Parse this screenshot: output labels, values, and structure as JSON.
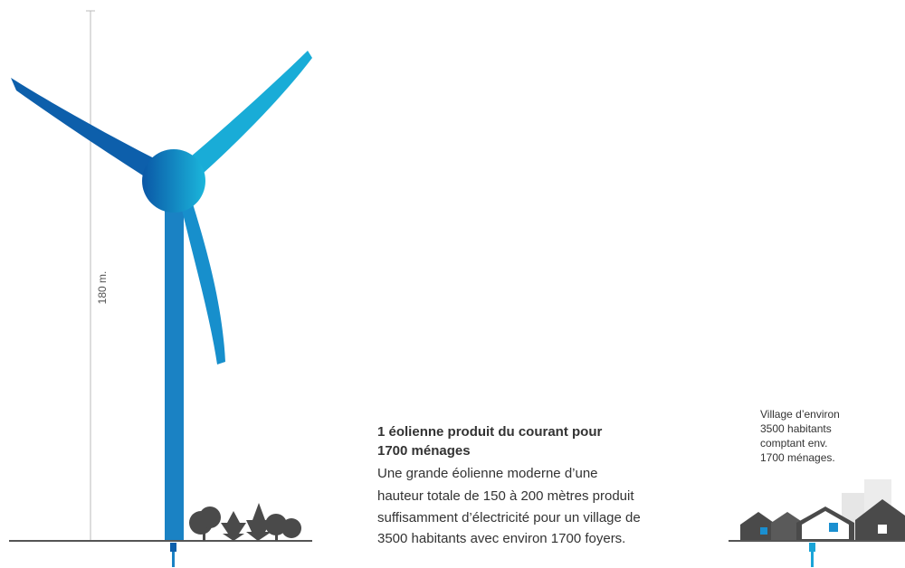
{
  "turbine": {
    "height_label": "180 m."
  },
  "description": {
    "heading_lines": [
      "1 éolienne produit du courant pour",
      "1700 ménages"
    ],
    "body_lines": [
      "Une grande éolienne  moderne d’une",
      "hauteur totale de 150 à 200 mètres produit",
      "suffisamment d’électricité pour un village de",
      "3500 habitants avec environ 1700 foyers."
    ]
  },
  "village": {
    "label_lines": [
      "Village d’environ",
      "3500 habitants",
      "comptant env.",
      "1700 ménages."
    ]
  }
}
